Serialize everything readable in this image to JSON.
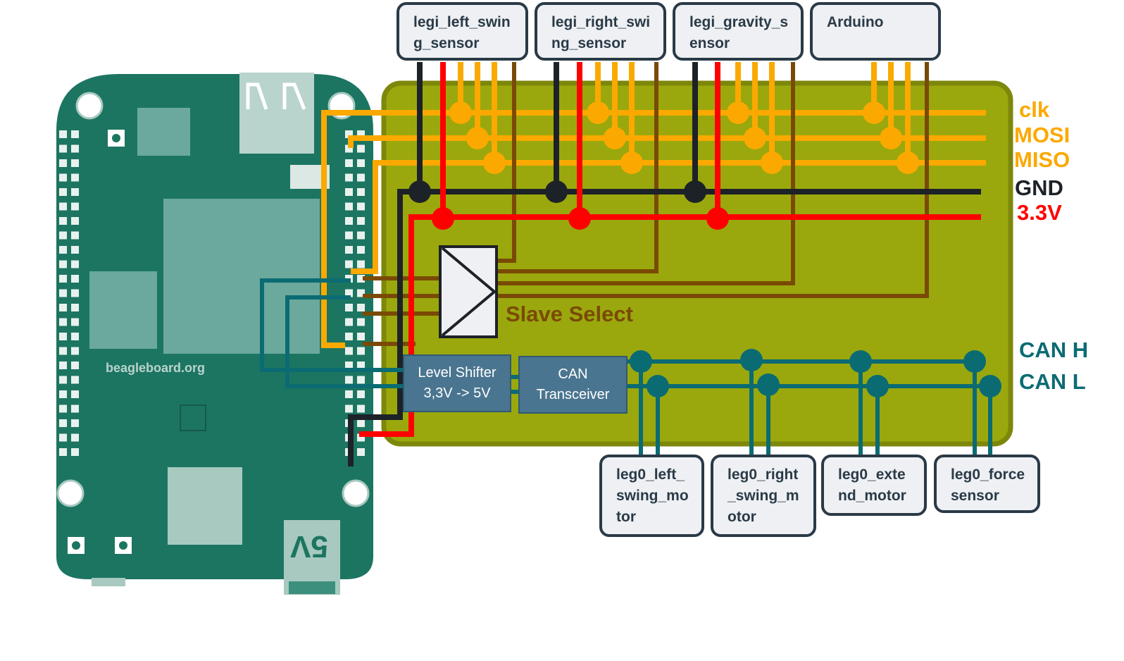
{
  "spi_devices": [
    {
      "id": "legi-left-swing-sensor",
      "label": "legi_left_swing_sensor"
    },
    {
      "id": "legi-right-swing-sensor",
      "label": "legi_right_swing_sensor"
    },
    {
      "id": "legi-gravity-sensor",
      "label": "legi_gravity_sensor"
    },
    {
      "id": "arduino",
      "label": "Arduino"
    }
  ],
  "can_devices": [
    {
      "id": "leg0-left-swing-motor",
      "label": "leg0_left_swing_motor"
    },
    {
      "id": "leg0-right-swing-motor",
      "label": "leg0_right_swing_motor"
    },
    {
      "id": "leg0-extend-motor",
      "label": "leg0_extend_motor"
    },
    {
      "id": "leg0-force-sensor",
      "label": "leg0_force sensor"
    }
  ],
  "buses": {
    "clk": "clk",
    "mosi": "MOSI",
    "miso": "MISO",
    "gnd": "GND",
    "v33": "3.3V",
    "can_h": "CAN H",
    "can_l": "CAN L"
  },
  "slave_select_label": "Slave Select",
  "level_shifter": {
    "line1": "Level Shifter",
    "line2": "3,3V -> 5V"
  },
  "can_transceiver": {
    "line1": "CAN",
    "line2": "Transceiver"
  },
  "board": {
    "logo": "beagleboard.org",
    "voltage": "5V"
  },
  "colors": {
    "spi": "#fba900",
    "gnd": "#1d2228",
    "power": "#ff0000",
    "slave_select": "#7a4a05",
    "can": "#0b6b73",
    "cape": "#9aa80d",
    "cape_border": "#7d870a",
    "board": "#1c7561"
  }
}
